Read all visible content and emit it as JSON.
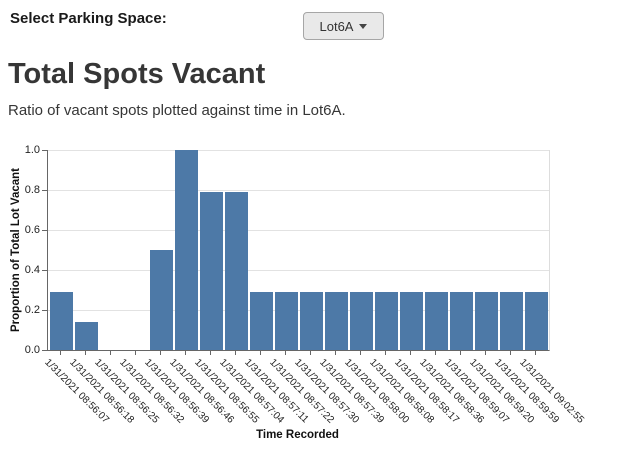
{
  "header": {
    "select_label": "Select Parking Space:",
    "dropdown_value": "Lot6A"
  },
  "page": {
    "title": "Total Spots Vacant",
    "subtitle": "Ratio of vacant spots plotted against time in Lot6A."
  },
  "chart_data": {
    "type": "bar",
    "title": "Total Spots Vacant",
    "xlabel": "Time Recorded",
    "ylabel": "Proportion of Total Lot Vacant",
    "categories": [
      "1/31/2021 08:56:07",
      "1/31/2021 08:56:18",
      "1/31/2021 08:56:25",
      "1/31/2021 08:56:32",
      "1/31/2021 08:56:39",
      "1/31/2021 08:56:46",
      "1/31/2021 08:56:55",
      "1/31/2021 08:57:04",
      "1/31/2021 08:57:11",
      "1/31/2021 08:57:22",
      "1/31/2021 08:57:30",
      "1/31/2021 08:57:39",
      "1/31/2021 08:58:00",
      "1/31/2021 08:58:08",
      "1/31/2021 08:58:17",
      "1/31/2021 08:58:36",
      "1/31/2021 08:59:07",
      "1/31/2021 08:59:20",
      "1/31/2021 08:59:59",
      "1/31/2021 09:02:55"
    ],
    "values": [
      0.29,
      0.14,
      0,
      0,
      0.5,
      1.0,
      0.79,
      0.79,
      0.29,
      0.29,
      0.29,
      0.29,
      0.29,
      0.29,
      0.29,
      0.29,
      0.29,
      0.29,
      0.29,
      0.29
    ],
    "ylim": [
      0,
      1.0
    ],
    "yticks": [
      0.0,
      0.2,
      0.4,
      0.6,
      0.8,
      1.0
    ],
    "grid": true,
    "legend": "none",
    "bar_color": "#4d79a7"
  }
}
